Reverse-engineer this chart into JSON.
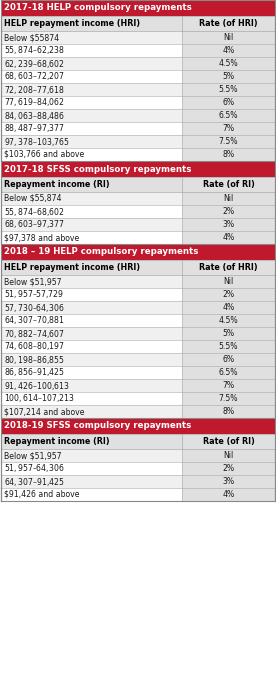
{
  "sections": [
    {
      "title": "2017-18 HELP compulsory repayments",
      "col1_header": "HELP repayment income (HRI)",
      "col2_header": "Rate (of HRI)",
      "rows": [
        [
          "Below $55874",
          "Nil"
        ],
        [
          "$55,874 – $62,238",
          "4%"
        ],
        [
          "$62,239 – $68,602",
          "4.5%"
        ],
        [
          "$68,603 – $72,207",
          "5%"
        ],
        [
          "$72,208 – $77,618",
          "5.5%"
        ],
        [
          "$77,619 – $84,062",
          "6%"
        ],
        [
          "$84,063 – $88,486",
          "6.5%"
        ],
        [
          "$88,487 – $97,377",
          "7%"
        ],
        [
          "$97,378 – $103,765",
          "7.5%"
        ],
        [
          "$103,766 and above",
          "8%"
        ]
      ]
    },
    {
      "title": "2017-18 SFSS compulsory repayments",
      "col1_header": "Repayment income (RI)",
      "col2_header": "Rate (of RI)",
      "rows": [
        [
          "Below $55,874",
          "Nil"
        ],
        [
          "$55,874 – $68,602",
          "2%"
        ],
        [
          "$68,603 – $97,377",
          "3%"
        ],
        [
          "$97,378 and above",
          "4%"
        ]
      ]
    },
    {
      "title": "2018 – 19 HELP compulsory repayments",
      "col1_header": "HELP repayment income (HRI)",
      "col2_header": "Rate (of HRI)",
      "rows": [
        [
          "Below $51,957",
          "Nil"
        ],
        [
          "$51,957 – $57,729",
          "2%"
        ],
        [
          "$57,730 – $64,306",
          "4%"
        ],
        [
          "$64,307 – $70,881",
          "4.5%"
        ],
        [
          "$70,882 – $74,607",
          "5%"
        ],
        [
          "$74,608 – $80,197",
          "5.5%"
        ],
        [
          "$80,198 – $86,855",
          "6%"
        ],
        [
          "$86,856 – $91,425",
          "6.5%"
        ],
        [
          "$91,426 – $100,613",
          "7%"
        ],
        [
          "$100,614 – $107,213",
          "7.5%"
        ],
        [
          "$107,214 and above",
          "8%"
        ]
      ]
    },
    {
      "title": "2018-19 SFSS compulsory repayments",
      "col1_header": "Repayment income (RI)",
      "col2_header": "Rate (of RI)",
      "rows": [
        [
          "Below $51,957",
          "Nil"
        ],
        [
          "$51,957 – $64,306",
          "2%"
        ],
        [
          "$64,307 – $91,425",
          "3%"
        ],
        [
          "$91,426 and above",
          "4%"
        ]
      ]
    }
  ],
  "title_bg": "#c0182d",
  "title_fg": "#ffffff",
  "header_bg": "#e0e0e0",
  "header_fg": "#000000",
  "row_bg_even": "#f0f0f0",
  "row_bg_odd": "#ffffff",
  "border_color": "#aaaaaa",
  "col2_bg": "#e0e0e0",
  "outer_border": "#888888",
  "fig_width": 2.76,
  "fig_height": 6.87,
  "dpi": 100
}
